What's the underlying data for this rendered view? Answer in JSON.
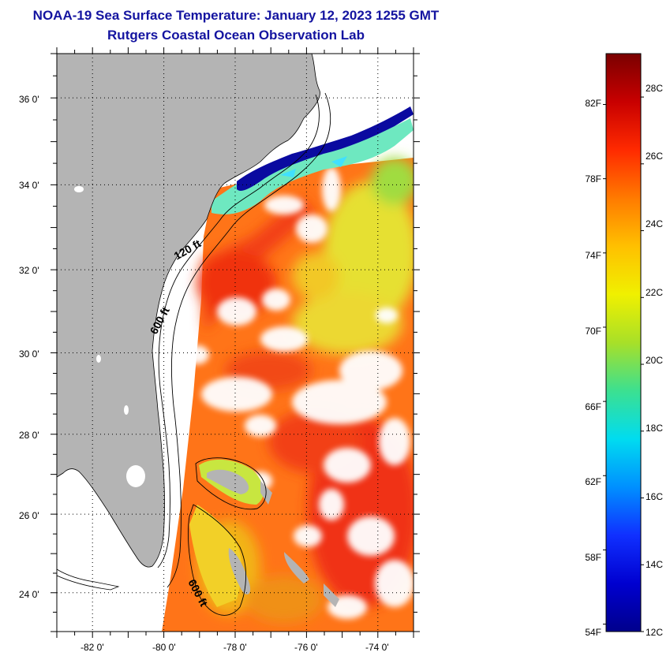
{
  "title": {
    "line1": "NOAA-19 Sea Surface Temperature:  January 12, 2023 1255 GMT",
    "line2": "Rutgers Coastal Ocean Observation Lab"
  },
  "map": {
    "latitude_labels": [
      "36 0'",
      "34 0'",
      "32 0'",
      "30 0'",
      "28 0'",
      "26 0'",
      "24 0'"
    ],
    "longitude_labels": [
      "-82 0'",
      "-80 0'",
      "-78 0'",
      "-76 0'",
      "-74 0'"
    ],
    "lat_range": [
      23,
      37
    ],
    "lon_range": [
      -83,
      -73
    ],
    "isobath_labels": {
      "shelf_120": "120 ft",
      "shelf_600": "600 ft",
      "bahamas_600": "600 ft"
    },
    "colors": {
      "land": "#b4b4b4",
      "cloud": "#ffffff",
      "cold_coastal": "#0a0a9a",
      "warm_gulfstream": "#f03a14"
    }
  },
  "colorbar": {
    "fahrenheit_labels": [
      "82F",
      "78F",
      "74F",
      "70F",
      "66F",
      "62F",
      "58F",
      "54F"
    ],
    "celsius_labels": [
      "28C",
      "26C",
      "24C",
      "22C",
      "20C",
      "18C",
      "16C",
      "14C",
      "12C"
    ],
    "range_celsius": [
      12,
      29.3
    ],
    "stops": [
      "#7a0000",
      "#c80000",
      "#ff2a00",
      "#ff7a00",
      "#ffc000",
      "#f0f000",
      "#a8e028",
      "#3ce090",
      "#00dcf0",
      "#0090ff",
      "#1030ff",
      "#0000d0",
      "#00008c"
    ]
  }
}
